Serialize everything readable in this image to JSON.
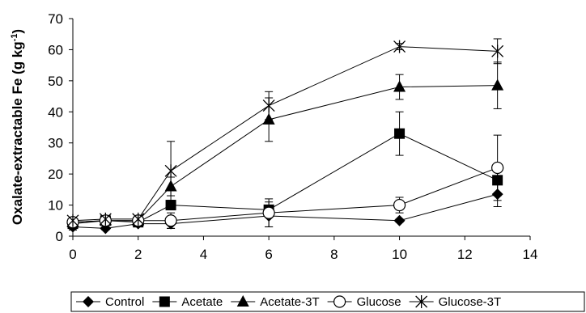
{
  "chart_data": {
    "type": "line",
    "ylabel_main": "Oxalate-extractable Fe (g kg",
    "ylabel_sup": "-1",
    "ylabel_close": ")",
    "xlim": [
      0,
      14
    ],
    "ylim": [
      0,
      70
    ],
    "x_ticks": [
      "0",
      "2",
      "4",
      "6",
      "8",
      "10",
      "12",
      "14"
    ],
    "y_ticks": [
      "0",
      "10",
      "20",
      "30",
      "40",
      "50",
      "60",
      "70"
    ],
    "x": [
      0,
      1,
      2,
      3,
      6,
      10,
      13
    ],
    "legend_position": "bottom",
    "grid": false,
    "series": [
      {
        "name": "Control",
        "marker": "diamond",
        "values": [
          3,
          2.5,
          4,
          4,
          6.5,
          5,
          13.5
        ],
        "err": [
          1,
          0.5,
          1,
          1.5,
          3.5,
          0.5,
          4
        ]
      },
      {
        "name": "Acetate",
        "marker": "square",
        "values": [
          4,
          5,
          4.5,
          10,
          8.5,
          33,
          18
        ],
        "err": [
          2,
          0.5,
          1,
          1.5,
          2.5,
          7,
          5
        ]
      },
      {
        "name": "Acetate-3T",
        "marker": "triangle",
        "values": [
          4.5,
          5,
          5,
          16,
          37.5,
          48,
          48.5
        ],
        "err": [
          1,
          0.5,
          1,
          3,
          7,
          4,
          7.5
        ]
      },
      {
        "name": "Glucose",
        "marker": "circle",
        "values": [
          4.5,
          5,
          5,
          5,
          7.5,
          10,
          22
        ],
        "err": [
          1.5,
          0.5,
          1,
          2.5,
          4.5,
          2.5,
          10.5
        ]
      },
      {
        "name": "Glucose-3T",
        "marker": "star",
        "values": [
          5,
          5.5,
          5.5,
          21,
          42,
          61,
          59.5
        ],
        "err": [
          1,
          0.5,
          1,
          9.5,
          4.5,
          1,
          4
        ]
      }
    ]
  }
}
